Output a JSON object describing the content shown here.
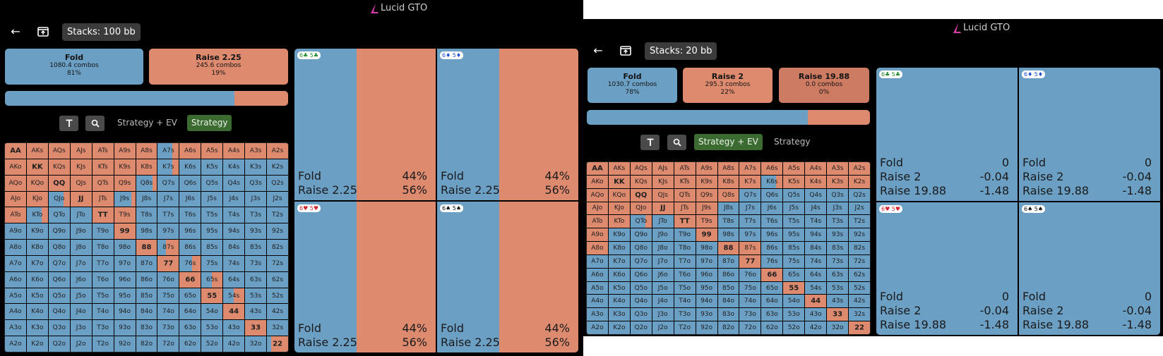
{
  "left": {
    "brand": "Lucid GTO",
    "stacks": "Stacks: 100 bb",
    "actions": [
      {
        "name": "Fold",
        "combos": "1080.4 combos",
        "pct": "81%"
      },
      {
        "name": "Raise 2.25",
        "combos": "245.6 combos",
        "pct": "19%"
      }
    ],
    "freq": [
      81,
      19
    ],
    "tabs": [
      "Strategy + EV",
      "Strategy"
    ],
    "active_tab": 1,
    "combos": [
      {
        "label": "6♣ 5♣",
        "suits": "clubs",
        "rows": [
          [
            "Fold",
            "44%"
          ],
          [
            "Raise 2.25",
            "56%"
          ]
        ],
        "split": 0.44
      },
      {
        "label": "6♦ 5♦",
        "suits": "diamonds",
        "rows": [
          [
            "Fold",
            "44%"
          ],
          [
            "Raise 2.25",
            "56%"
          ]
        ],
        "split": 0.44
      },
      {
        "label": "6♥ 5♥",
        "suits": "hearts",
        "rows": [
          [
            "Fold",
            "44%"
          ],
          [
            "Raise 2.25",
            "56%"
          ]
        ],
        "split": 0.44
      },
      {
        "label": "6♠ 5♠",
        "suits": "spades",
        "rows": [
          [
            "Fold",
            "44%"
          ],
          [
            "Raise 2.25",
            "56%"
          ]
        ],
        "split": 0.44
      }
    ],
    "matrix_raise": [
      [
        1,
        1,
        1,
        1,
        1,
        1,
        1,
        0.3,
        1,
        1,
        1,
        1,
        1
      ],
      [
        1,
        1,
        1,
        1,
        1,
        1,
        1,
        0.3,
        0,
        0,
        0,
        0,
        0
      ],
      [
        1,
        1,
        1,
        1,
        1,
        1,
        0.2,
        0,
        0,
        0,
        0,
        0,
        0
      ],
      [
        1,
        1,
        0.3,
        1,
        1,
        0.2,
        0,
        0,
        0,
        0,
        0,
        0,
        0
      ],
      [
        1,
        0.3,
        0,
        0,
        1,
        1,
        0,
        0,
        0,
        0,
        0,
        0,
        0
      ],
      [
        0,
        0,
        0,
        0,
        0,
        1,
        0,
        0,
        0,
        0,
        0,
        0,
        0
      ],
      [
        0,
        0,
        0,
        0,
        0,
        0,
        1,
        0.6,
        0,
        0,
        0,
        0,
        0
      ],
      [
        0,
        0,
        0,
        0,
        0,
        0,
        0,
        1,
        0.4,
        0,
        0,
        0,
        0
      ],
      [
        0,
        0,
        0,
        0,
        0,
        0,
        0,
        0,
        1,
        0.5,
        0,
        0,
        0
      ],
      [
        0,
        0,
        0,
        0,
        0,
        0,
        0,
        0,
        0,
        1,
        0.5,
        0,
        0
      ],
      [
        0,
        0,
        0,
        0,
        0,
        0,
        0,
        0,
        0,
        0,
        1,
        0,
        0
      ],
      [
        0,
        0,
        0,
        0,
        0,
        0,
        0,
        0,
        0,
        0,
        0,
        1,
        0
      ],
      [
        0,
        0,
        0,
        0,
        0,
        0,
        0,
        0,
        0,
        0,
        0,
        0,
        0.8
      ]
    ]
  },
  "right": {
    "brand": "Lucid GTO",
    "stacks": "Stacks: 20 bb",
    "actions": [
      {
        "name": "Fold",
        "combos": "1030.7 combos",
        "pct": "78%"
      },
      {
        "name": "Raise 2",
        "combos": "295.3 combos",
        "pct": "22%"
      },
      {
        "name": "Raise 19.88",
        "combos": "0.0 combos",
        "pct": "0%"
      }
    ],
    "freq": [
      78,
      22
    ],
    "tabs": [
      "Strategy + EV",
      "Strategy"
    ],
    "active_tab": 0,
    "combos": [
      {
        "label": "6♣ 5♣",
        "suits": "clubs",
        "rows": [
          [
            "Fold",
            "0"
          ],
          [
            "Raise 2",
            "-0.04"
          ],
          [
            "Raise 19.88",
            "-1.48"
          ]
        ],
        "split": 1
      },
      {
        "label": "6♦ 5♦",
        "suits": "diamonds",
        "rows": [
          [
            "Fold",
            "0"
          ],
          [
            "Raise 2",
            "-0.04"
          ],
          [
            "Raise 19.88",
            "-1.48"
          ]
        ],
        "split": 1
      },
      {
        "label": "6♥ 5♥",
        "suits": "hearts",
        "rows": [
          [
            "Fold",
            "0"
          ],
          [
            "Raise 2",
            "-0.04"
          ],
          [
            "Raise 19.88",
            "-1.48"
          ]
        ],
        "split": 1
      },
      {
        "label": "6♠ 5♠",
        "suits": "spades",
        "rows": [
          [
            "Fold",
            "0"
          ],
          [
            "Raise 2",
            "-0.04"
          ],
          [
            "Raise 19.88",
            "-1.48"
          ]
        ],
        "split": 1
      }
    ],
    "matrix_raise": [
      [
        1,
        1,
        1,
        1,
        1,
        1,
        1,
        1,
        1,
        1,
        1,
        1,
        1
      ],
      [
        1,
        1,
        1,
        1,
        1,
        1,
        1,
        1,
        0.3,
        1,
        1,
        1,
        1
      ],
      [
        1,
        1,
        1,
        1,
        1,
        1,
        1,
        0,
        0,
        0,
        0,
        0,
        0
      ],
      [
        1,
        1,
        1,
        1,
        1,
        1,
        0,
        0,
        0,
        0,
        0,
        0,
        0
      ],
      [
        1,
        1,
        0.3,
        0,
        1,
        1,
        0,
        0,
        0,
        0,
        0,
        0,
        0
      ],
      [
        1,
        0,
        0,
        0,
        0,
        1,
        0,
        0,
        0,
        0,
        0,
        0,
        0
      ],
      [
        1,
        0,
        0,
        0,
        0,
        0,
        1,
        1,
        0,
        0,
        0,
        0,
        0
      ],
      [
        0,
        0,
        0,
        0,
        0,
        0,
        0,
        1,
        0,
        0,
        0,
        0,
        0
      ],
      [
        0,
        0,
        0,
        0,
        0,
        0,
        0,
        0,
        1,
        0,
        0,
        0,
        0
      ],
      [
        0,
        0,
        0,
        0,
        0,
        0,
        0,
        0,
        0,
        1,
        0,
        0,
        0
      ],
      [
        0,
        0,
        0,
        0,
        0,
        0,
        0,
        0,
        0,
        0,
        1,
        0,
        0
      ],
      [
        0,
        0,
        0,
        0,
        0,
        0,
        0,
        0,
        0,
        0,
        0,
        1,
        0
      ],
      [
        0,
        0,
        0,
        0,
        0,
        0,
        0,
        0,
        0,
        0,
        0,
        0,
        1
      ]
    ]
  },
  "ranks": [
    "A",
    "K",
    "Q",
    "J",
    "T",
    "9",
    "8",
    "7",
    "6",
    "5",
    "4",
    "3",
    "2"
  ],
  "colors": {
    "fold": "#6b9fc4",
    "raise": "#dd8a6f",
    "raise_large": "#cd7b62",
    "active_tab": "#3c6b31",
    "brand": "#d63ca8"
  }
}
